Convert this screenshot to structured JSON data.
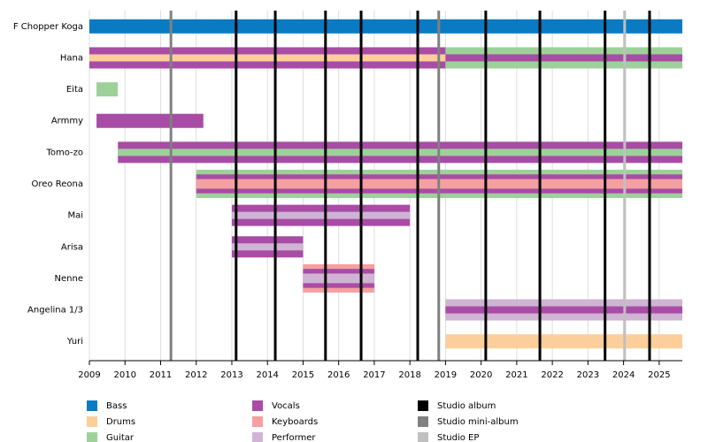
{
  "chart_data": {
    "type": "timeline",
    "xlim": [
      2009,
      2025.65
    ],
    "xticks": [
      2009,
      2010,
      2011,
      2012,
      2013,
      2014,
      2015,
      2016,
      2017,
      2018,
      2019,
      2020,
      2021,
      2022,
      2023,
      2024,
      2025
    ],
    "grid": true,
    "roles": [
      {
        "name": "Bass",
        "color": "#0a7bc2"
      },
      {
        "name": "Drums",
        "color": "#fccf9a"
      },
      {
        "name": "Guitar",
        "color": "#9ed19a"
      },
      {
        "name": "Vocals",
        "color": "#a94ca6"
      },
      {
        "name": "Keyboards",
        "color": "#f4a0a0"
      },
      {
        "name": "Performer",
        "color": "#cfb4d4"
      }
    ],
    "members": [
      {
        "name": "F Chopper Koga",
        "segments": [
          {
            "start": 2009,
            "end": 2025.65,
            "roles": [
              0
            ]
          }
        ]
      },
      {
        "name": "Hana",
        "segments": [
          {
            "start": 2009,
            "end": 2019.0,
            "roles": [
              3,
              1
            ]
          },
          {
            "start": 2019.0,
            "end": 2025.65,
            "roles": [
              2,
              3
            ]
          }
        ]
      },
      {
        "name": "Eita",
        "segments": [
          {
            "start": 2009.2,
            "end": 2009.8,
            "roles": [
              2
            ]
          }
        ]
      },
      {
        "name": "Armmy",
        "segments": [
          {
            "start": 2009.2,
            "end": 2012.2,
            "roles": [
              3
            ]
          }
        ]
      },
      {
        "name": "Tomo-zo",
        "segments": [
          {
            "start": 2009.8,
            "end": 2025.65,
            "roles": [
              3,
              2
            ]
          }
        ]
      },
      {
        "name": "Oreo Reona",
        "segments": [
          {
            "start": 2012.0,
            "end": 2025.65,
            "roles": [
              2,
              3,
              4
            ]
          }
        ]
      },
      {
        "name": "Mai",
        "segments": [
          {
            "start": 2013.0,
            "end": 2018.0,
            "roles": [
              3,
              5
            ]
          }
        ]
      },
      {
        "name": "Arisa",
        "segments": [
          {
            "start": 2013.0,
            "end": 2015.0,
            "roles": [
              3,
              5
            ]
          }
        ]
      },
      {
        "name": "Nenne",
        "segments": [
          {
            "start": 2015.0,
            "end": 2017.0,
            "roles": [
              4,
              3,
              5
            ]
          }
        ]
      },
      {
        "name": "Angelina 1/3",
        "segments": [
          {
            "start": 2019.0,
            "end": 2025.65,
            "roles": [
              5,
              3
            ]
          }
        ]
      },
      {
        "name": "Yuri",
        "segments": [
          {
            "start": 2019.0,
            "end": 2025.65,
            "roles": [
              1
            ]
          }
        ]
      }
    ],
    "events": [
      {
        "name": "Studio album",
        "color": "#000000",
        "dates": [
          2013.12,
          2014.22,
          2015.63,
          2016.63,
          2018.22,
          2020.13,
          2021.65,
          2023.48,
          2024.73
        ]
      },
      {
        "name": "Studio mini-album",
        "color": "#808080",
        "dates": [
          2011.29,
          2018.81
        ]
      },
      {
        "name": "Studio EP",
        "color": "#c0c0c0",
        "dates": [
          2024.03
        ]
      }
    ]
  }
}
